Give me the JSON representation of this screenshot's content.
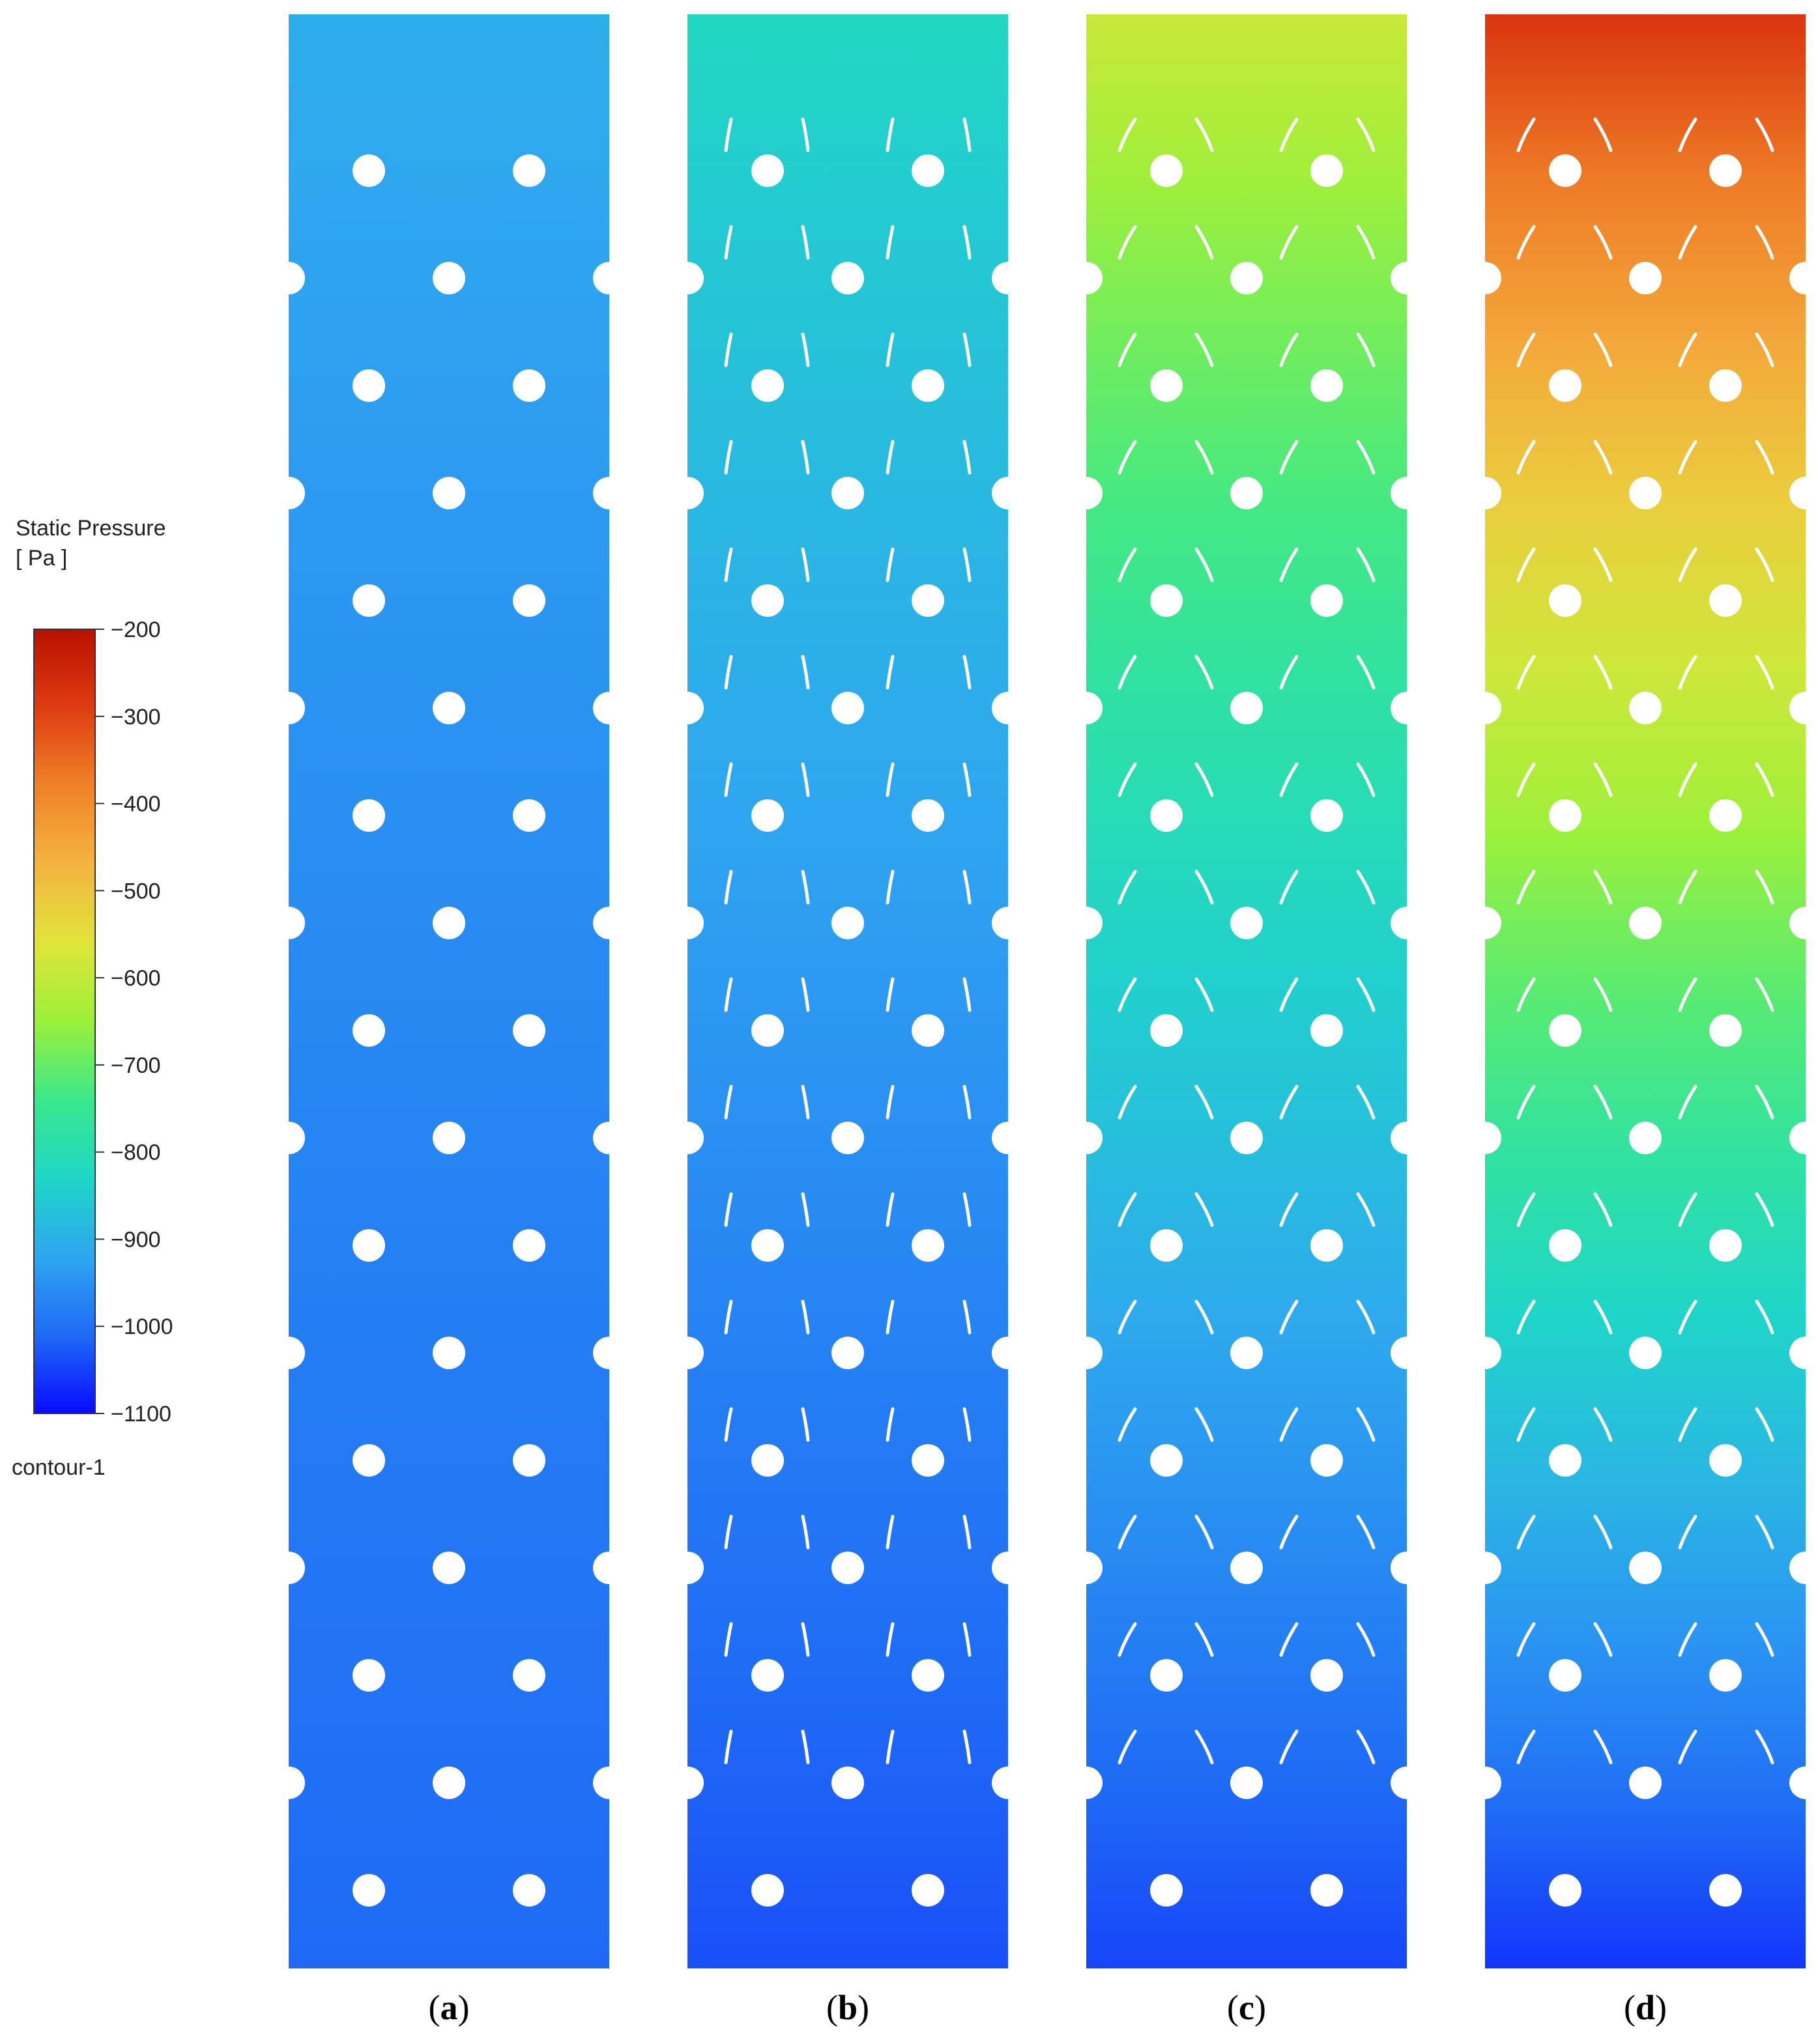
{
  "legend": {
    "title": "Static Pressure",
    "unit": "[ Pa ]",
    "ticks": [
      "-200",
      "-300",
      "-400",
      "-500",
      "-600",
      "-700",
      "-800",
      "-900",
      "-1000",
      "-1100"
    ],
    "range": [
      -1100,
      -200
    ],
    "name": "contour-1",
    "colors": [
      "#0a0aff",
      "#1f6af5",
      "#2fa6f0",
      "#1fd6c8",
      "#3ae88a",
      "#9cf03a",
      "#e0e43a",
      "#f4b440",
      "#f08228",
      "#de3c12",
      "#b81000"
    ]
  },
  "panels": [
    {
      "letter": "a",
      "has_fins": false,
      "top_pressure": -905,
      "bottom_pressure": -1010
    },
    {
      "letter": "b",
      "has_fins": true,
      "top_pressure": -820,
      "bottom_pressure": -1035
    },
    {
      "letter": "c",
      "has_fins": true,
      "top_pressure": -590,
      "bottom_pressure": -1045
    },
    {
      "letter": "d",
      "has_fins": true,
      "top_pressure": -275,
      "bottom_pressure": -1060
    }
  ]
}
